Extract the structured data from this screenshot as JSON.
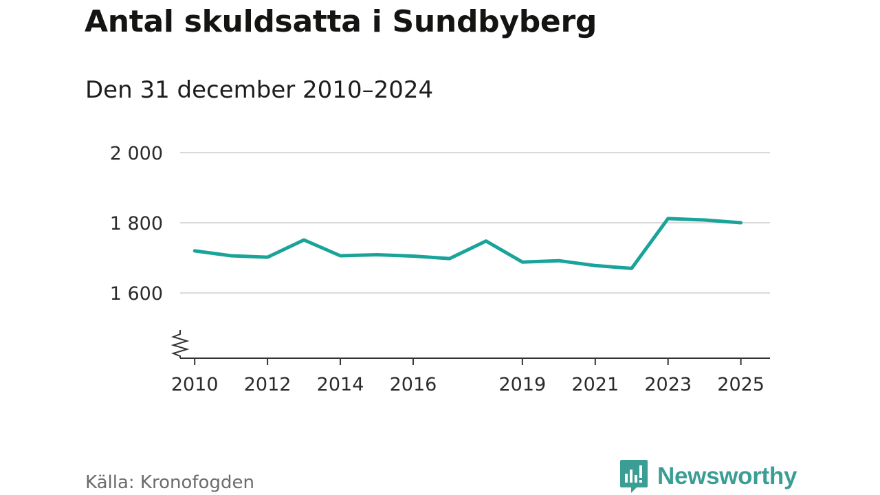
{
  "title": "Antal skuldsatta i Sundbyberg",
  "subtitle": "Den 31 december 2010–2024",
  "source": "Källa: Kronofogden",
  "brand": {
    "name": "Newsworthy",
    "icon": "newsworthy-logo-icon"
  },
  "colors": {
    "line": "#1aa39a",
    "grid": "#d9d9d9",
    "axis": "#333333",
    "brand": "#3a9e95"
  },
  "chart_data": {
    "type": "line",
    "title": "Antal skuldsatta i Sundbyberg",
    "subtitle": "Den 31 december 2010–2024",
    "xlabel": "",
    "ylabel": "",
    "x": [
      2010,
      2011,
      2012,
      2013,
      2014,
      2015,
      2016,
      2017,
      2018,
      2019,
      2020,
      2021,
      2022,
      2023,
      2024,
      2025
    ],
    "series": [
      {
        "name": "Antal skuldsatta",
        "values": [
          1720,
          1706,
          1702,
          1751,
          1706,
          1709,
          1705,
          1698,
          1748,
          1688,
          1692,
          1678,
          1670,
          1812,
          1808,
          1800
        ]
      }
    ],
    "yticks": [
      1600,
      1800,
      2000
    ],
    "ytick_labels": [
      "1 600",
      "1 800",
      "2 000"
    ],
    "xticks": [
      2010,
      2012,
      2014,
      2016,
      2019,
      2021,
      2023,
      2025
    ],
    "xtick_labels": [
      "2010",
      "2012",
      "2014",
      "2016",
      "2019",
      "2021",
      "2023",
      "2025"
    ],
    "ylim": [
      1414,
      2000
    ],
    "xlim": [
      2009.6,
      2025.8
    ],
    "grid": true,
    "axis_break": true
  }
}
